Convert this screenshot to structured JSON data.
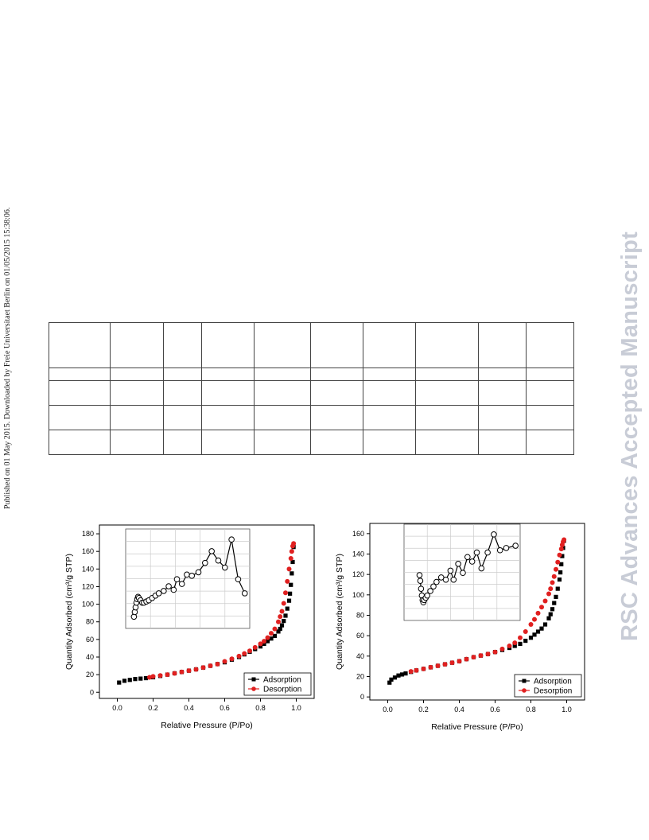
{
  "sidebar_left": {
    "text": "Published on 01 May 2015. Downloaded by Freie Universitaet Berlin on 01/05/2015 15:38:06."
  },
  "watermark": {
    "text": "RSC Advances Accepted Manuscript"
  },
  "table": {
    "col_widths": [
      77,
      67,
      48,
      66,
      71,
      66,
      66,
      79,
      60,
      60
    ],
    "rows": 5
  },
  "chart_data": [
    {
      "type": "scatter",
      "title": "",
      "xlabel": "Relative Pressure (P/Po)",
      "ylabel": "Quantity Adsorbed (cm³/g STP)",
      "xlim": [
        -0.1,
        1.1
      ],
      "ylim": [
        -7,
        190
      ],
      "xticks": [
        "0.0",
        "0.2",
        "0.4",
        "0.6",
        "0.8",
        "1.0"
      ],
      "yticks": [
        "0",
        "20",
        "40",
        "60",
        "80",
        "100",
        "120",
        "140",
        "160",
        "180"
      ],
      "legend_position": "bottom-right",
      "series": [
        {
          "name": "Adsorption",
          "color": "#000000",
          "marker": "square",
          "x": [
            0.01,
            0.04,
            0.07,
            0.1,
            0.13,
            0.16,
            0.2,
            0.24,
            0.28,
            0.32,
            0.36,
            0.4,
            0.44,
            0.48,
            0.52,
            0.56,
            0.6,
            0.64,
            0.68,
            0.71,
            0.74,
            0.77,
            0.8,
            0.82,
            0.84,
            0.86,
            0.88,
            0.9,
            0.91,
            0.92,
            0.93,
            0.94,
            0.95,
            0.96,
            0.965,
            0.97,
            0.975,
            0.98,
            0.985
          ],
          "y": [
            11,
            13,
            14,
            15,
            15.5,
            16,
            17,
            18.5,
            20,
            21.5,
            23,
            24.5,
            26,
            28,
            30,
            32,
            34,
            37,
            40,
            43,
            46,
            49,
            52,
            55,
            58,
            61,
            64,
            69,
            72,
            76,
            81,
            87,
            95,
            104,
            112,
            122,
            135,
            148,
            165
          ]
        },
        {
          "name": "Desorption",
          "color": "#e02020",
          "marker": "circle",
          "x": [
            0.985,
            0.98,
            0.975,
            0.97,
            0.96,
            0.95,
            0.94,
            0.93,
            0.92,
            0.91,
            0.9,
            0.88,
            0.86,
            0.84,
            0.82,
            0.8,
            0.77,
            0.74,
            0.71,
            0.68,
            0.64,
            0.6,
            0.56,
            0.52,
            0.48,
            0.44,
            0.4,
            0.36,
            0.32,
            0.28,
            0.24,
            0.2,
            0.18
          ],
          "y": [
            169,
            166,
            160,
            152,
            140,
            126,
            113,
            101,
            92,
            86,
            80,
            72,
            67,
            62,
            58,
            55,
            51,
            47,
            44,
            41,
            38,
            35,
            32,
            30,
            28,
            26,
            24.5,
            23,
            21.5,
            20,
            19,
            18,
            17
          ]
        }
      ],
      "inset": {
        "series": [
          {
            "name": "",
            "color": "#000000",
            "marker": "open-circle",
            "x": [
              0.05,
              0.055,
              0.06,
              0.065,
              0.07,
              0.075,
              0.08,
              0.09,
              0.1,
              0.11,
              0.125,
              0.14,
              0.16,
              0.18,
              0.2,
              0.23,
              0.26,
              0.29,
              0.31,
              0.34,
              0.37,
              0.4,
              0.44,
              0.48,
              0.52,
              0.56,
              0.6,
              0.64,
              0.68,
              0.72
            ],
            "y": [
              0.1,
              0.14,
              0.18,
              0.22,
              0.25,
              0.27,
              0.26,
              0.24,
              0.22,
              0.22,
              0.23,
              0.24,
              0.26,
              0.28,
              0.3,
              0.32,
              0.36,
              0.33,
              0.42,
              0.38,
              0.46,
              0.45,
              0.48,
              0.56,
              0.66,
              0.58,
              0.52,
              0.76,
              0.42,
              0.3
            ]
          }
        ]
      }
    },
    {
      "type": "scatter",
      "title": "",
      "xlabel": "Relative Pressure (P/Po)",
      "ylabel": "Quantity Adsorbed (cm³/g STP)",
      "xlim": [
        -0.1,
        1.1
      ],
      "ylim": [
        -3,
        170
      ],
      "xticks": [
        "0.0",
        "0.2",
        "0.4",
        "0.6",
        "0.8",
        "1.0"
      ],
      "yticks": [
        "0",
        "20",
        "40",
        "60",
        "80",
        "100",
        "120",
        "140",
        "160"
      ],
      "legend_position": "bottom-right",
      "series": [
        {
          "name": "Adsorption",
          "color": "#000000",
          "marker": "square",
          "x": [
            0.01,
            0.02,
            0.04,
            0.06,
            0.08,
            0.1,
            0.13,
            0.16,
            0.2,
            0.24,
            0.28,
            0.32,
            0.36,
            0.4,
            0.44,
            0.48,
            0.52,
            0.56,
            0.6,
            0.64,
            0.68,
            0.71,
            0.74,
            0.77,
            0.8,
            0.82,
            0.84,
            0.86,
            0.88,
            0.9,
            0.91,
            0.92,
            0.93,
            0.94,
            0.95,
            0.96,
            0.965,
            0.97,
            0.975,
            0.98,
            0.985
          ],
          "y": [
            14,
            17,
            19,
            21,
            22,
            23,
            24.5,
            26,
            27.5,
            29,
            30.5,
            32,
            33.5,
            35,
            37,
            39,
            40.5,
            42,
            44,
            46,
            48,
            50,
            52,
            55,
            58,
            61,
            64,
            67,
            71,
            77,
            81,
            86,
            92,
            98,
            106,
            115,
            122,
            130,
            138,
            146,
            153
          ]
        },
        {
          "name": "Desorption",
          "color": "#e02020",
          "marker": "circle",
          "x": [
            0.985,
            0.98,
            0.975,
            0.97,
            0.96,
            0.95,
            0.94,
            0.93,
            0.92,
            0.91,
            0.9,
            0.88,
            0.86,
            0.84,
            0.82,
            0.8,
            0.77,
            0.74,
            0.71,
            0.68,
            0.64,
            0.6,
            0.56,
            0.52,
            0.48,
            0.44,
            0.4,
            0.36,
            0.32,
            0.28,
            0.24,
            0.2,
            0.16,
            0.13
          ],
          "y": [
            154,
            152,
            149,
            145,
            139,
            132,
            125,
            118,
            112,
            106,
            101,
            94,
            88,
            82,
            76,
            71,
            64,
            58,
            53,
            50,
            47,
            44,
            42,
            40.5,
            39,
            37,
            35,
            33.5,
            32,
            30.5,
            29,
            27.5,
            26,
            25
          ]
        }
      ],
      "inset": {
        "series": [
          {
            "name": "",
            "color": "#000000",
            "marker": "open-circle",
            "x": [
              0.1,
              0.105,
              0.11,
              0.115,
              0.12,
              0.125,
              0.13,
              0.14,
              0.15,
              0.17,
              0.19,
              0.21,
              0.24,
              0.27,
              0.3,
              0.32,
              0.35,
              0.38,
              0.41,
              0.44,
              0.47,
              0.5,
              0.54,
              0.58,
              0.62,
              0.66,
              0.72
            ],
            "y": [
              0.4,
              0.35,
              0.28,
              0.22,
              0.18,
              0.16,
              0.18,
              0.2,
              0.22,
              0.26,
              0.3,
              0.34,
              0.38,
              0.36,
              0.44,
              0.36,
              0.5,
              0.42,
              0.56,
              0.52,
              0.6,
              0.46,
              0.6,
              0.76,
              0.62,
              0.64,
              0.66
            ]
          }
        ]
      }
    }
  ]
}
